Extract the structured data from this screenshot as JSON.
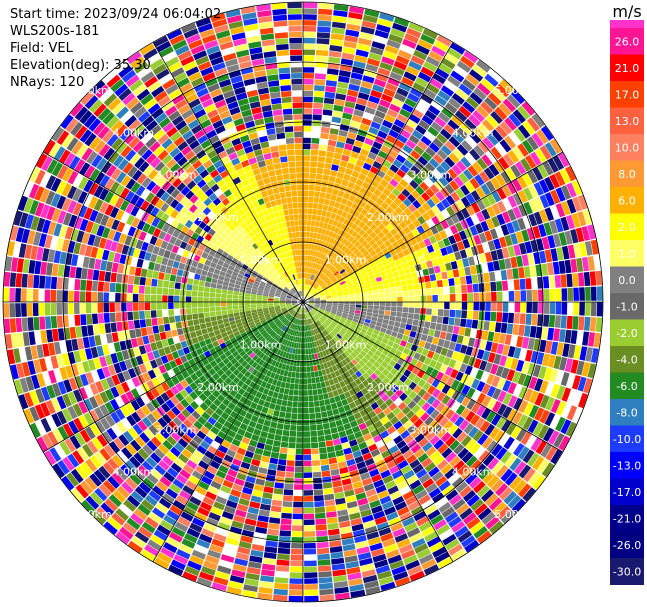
{
  "header": {
    "start_time": "Start time: 2023/09/24 06:04:02",
    "instrument": "WLS200s-181",
    "field": "Field: VEL",
    "elevation": "Elevation(deg): 35.30",
    "nrays": "NRays: 120"
  },
  "chart_data": {
    "type": "heatmap",
    "subtype": "polar-ppi",
    "range_rings_km": [
      1,
      2,
      3,
      4,
      5
    ],
    "range_labels": [
      "1.00km",
      "2.00km",
      "3.00km",
      "4.00km",
      "5.00km"
    ],
    "n_rays": 120,
    "colorbar": {
      "unit": "m/s",
      "ticks": [
        "26.0",
        "21.0",
        "17.0",
        "13.0",
        "10.0",
        "8.0",
        "6.0",
        "2.0",
        "1.0",
        "0.0",
        "-1.0",
        "-2.0",
        "-4.0",
        "-6.0",
        "-8.0",
        "-10.0",
        "-13.0",
        "-17.0",
        "-21.0",
        "-26.0",
        "-30.0"
      ],
      "colors": [
        "#ff1493",
        "#ff0000",
        "#ff4000",
        "#ff6040",
        "#ff8060",
        "#ff9933",
        "#ffb000",
        "#ffff00",
        "#ffff66",
        "#808080",
        "#696969",
        "#9acd32",
        "#6b8e23",
        "#228b22",
        "#2f7fc0",
        "#1e3cff",
        "#0000ff",
        "#0000cd",
        "#00008b",
        "#000080",
        "#191970"
      ],
      "top_color": "#ff33cc"
    }
  }
}
